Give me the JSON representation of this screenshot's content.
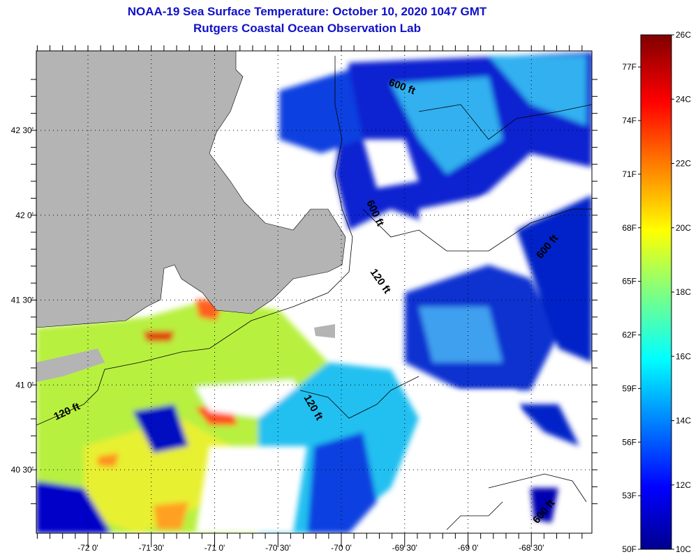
{
  "header": {
    "title": "NOAA-19 Sea Surface Temperature:  October 10, 2020 1047 GMT",
    "subtitle": "Rutgers Coastal Ocean Observation Lab"
  },
  "map": {
    "lon_labels": [
      "-72 0'",
      "-71 30'",
      "-71 0'",
      "-70 30'",
      "-70 0'",
      "-69 30'",
      "-69 0'",
      "-68 30'"
    ],
    "lon_values": [
      -72,
      -71.5,
      -71,
      -70.5,
      -70,
      -69.5,
      -69,
      -68.5
    ],
    "lat_labels": [
      "42 30'",
      "42 0'",
      "41 30'",
      "41 0'",
      "40 30'"
    ],
    "lat_values": [
      42.5,
      42,
      41.5,
      41,
      40.5
    ],
    "contour_labels": [
      "600 ft",
      "600 ft",
      "120 ft",
      "600 ft",
      "120 ft",
      "120 ft",
      "600 ft"
    ],
    "colors": {
      "land": "#b4b4b4",
      "no_data": "#ffffff",
      "title": "#1010c8"
    }
  },
  "colorbar": {
    "fahrenheit_labels": [
      "77F",
      "74F",
      "71F",
      "68F",
      "65F",
      "62F",
      "59F",
      "56F",
      "53F",
      "50F"
    ],
    "celsius_labels": [
      "26C",
      "24C",
      "22C",
      "20C",
      "18C",
      "16C",
      "14C",
      "12C",
      "10C"
    ],
    "range_c": [
      10,
      26
    ]
  }
}
